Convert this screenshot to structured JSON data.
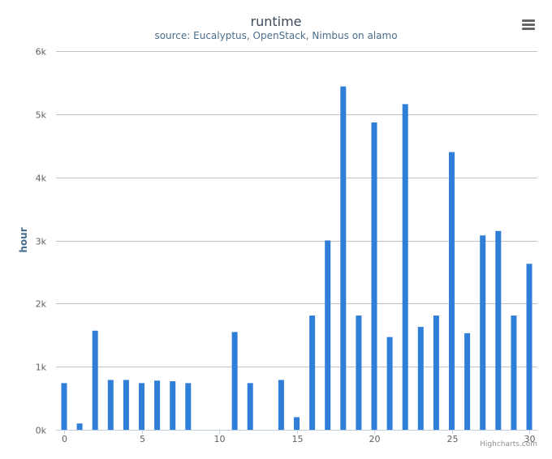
{
  "chart_data": {
    "type": "bar",
    "title": "runtime",
    "subtitle": "source: Eucalyptus, OpenStack, Nimbus on alamo",
    "xlabel": "",
    "ylabel": "hour",
    "x": [
      0,
      1,
      2,
      3,
      4,
      5,
      6,
      7,
      8,
      9,
      10,
      11,
      12,
      13,
      14,
      15,
      16,
      17,
      18,
      19,
      20,
      21,
      22,
      23,
      24,
      25,
      26,
      27,
      28,
      29,
      30
    ],
    "values": [
      740,
      100,
      1570,
      790,
      790,
      740,
      780,
      770,
      740,
      0,
      0,
      1550,
      740,
      0,
      790,
      200,
      1810,
      3000,
      5440,
      1810,
      4870,
      1470,
      5160,
      1630,
      1810,
      4400,
      1530,
      3080,
      3150,
      1810,
      2630
    ],
    "xlim": [
      0,
      30
    ],
    "ylim": [
      0,
      6000
    ],
    "x_ticks": [
      "0",
      "5",
      "10",
      "15",
      "20",
      "25",
      "30"
    ],
    "y_ticks": [
      "0k",
      "1k",
      "2k",
      "3k",
      "4k",
      "5k",
      "6k"
    ],
    "grid": true,
    "legend": "none",
    "bar_color": "#2f7ed8"
  },
  "menu_icon": "hamburger-menu-icon",
  "credits": "Highcharts.com"
}
